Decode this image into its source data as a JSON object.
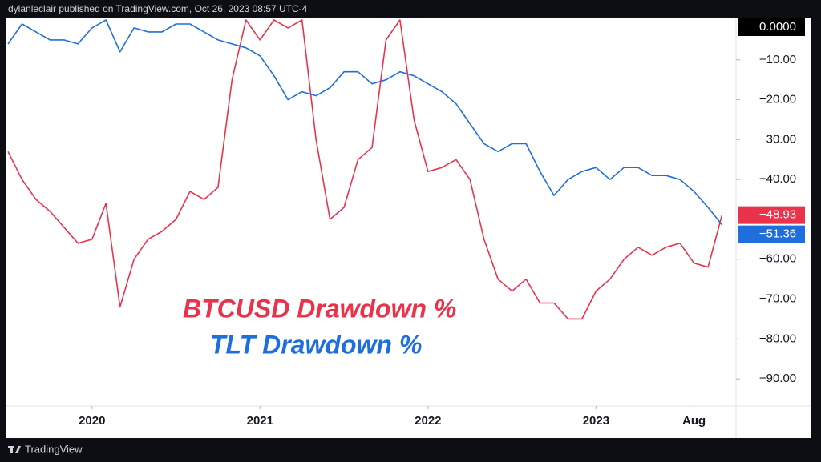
{
  "header": "dylanleclair published on TradingView.com, Oct 26, 2023 08:57 UTC-4",
  "footer": "TradingView",
  "chart_data": {
    "type": "line",
    "annotations": [
      {
        "text": "BTCUSD Drawdown %",
        "color": "#e8334a"
      },
      {
        "text": "TLT Drawdown %",
        "color": "#1e6fdb"
      }
    ],
    "x": [
      "2019-07",
      "2019-08",
      "2019-09",
      "2019-10",
      "2019-11",
      "2019-12",
      "2020-01",
      "2020-02",
      "2020-03",
      "2020-04",
      "2020-05",
      "2020-06",
      "2020-07",
      "2020-08",
      "2020-09",
      "2020-10",
      "2020-11",
      "2020-12",
      "2021-01",
      "2021-02",
      "2021-03",
      "2021-04",
      "2021-05",
      "2021-06",
      "2021-07",
      "2021-08",
      "2021-09",
      "2021-10",
      "2021-11",
      "2021-12",
      "2022-01",
      "2022-02",
      "2022-03",
      "2022-04",
      "2022-05",
      "2022-06",
      "2022-07",
      "2022-08",
      "2022-09",
      "2022-10",
      "2022-11",
      "2022-12",
      "2023-01",
      "2023-02",
      "2023-03",
      "2023-04",
      "2023-05",
      "2023-06",
      "2023-07",
      "2023-08",
      "2023-09",
      "2023-10"
    ],
    "series": [
      {
        "name": "BTCUSD",
        "color": "#e8334a",
        "values": [
          -33,
          -40,
          -45,
          -48,
          -52,
          -56,
          -55,
          -46,
          -72,
          -60,
          -55,
          -53,
          -50,
          -43,
          -45,
          -42,
          -15,
          0,
          -5,
          0,
          -2,
          0,
          -30,
          -50,
          -47,
          -35,
          -32,
          -5,
          0,
          -25,
          -38,
          -37,
          -35,
          -40,
          -55,
          -65,
          -68,
          -65,
          -71,
          -71,
          -75,
          -75,
          -68,
          -65,
          -60,
          -57,
          -59,
          -57,
          -56,
          -61,
          -62,
          -48.93
        ]
      },
      {
        "name": "TLT",
        "color": "#1e6fdb",
        "values": [
          -6,
          -1,
          -3,
          -5,
          -5,
          -6,
          -2,
          0,
          -8,
          -2,
          -3,
          -3,
          -1,
          -1,
          -3,
          -5,
          -6,
          -7,
          -9,
          -14,
          -20,
          -18,
          -19,
          -17,
          -13,
          -13,
          -16,
          -15,
          -13,
          -14,
          -16,
          -18,
          -21,
          -26,
          -31,
          -33,
          -31,
          -31,
          -38,
          -44,
          -40,
          -38,
          -37,
          -40,
          -37,
          -37,
          -39,
          -39,
          -40,
          -43,
          -47,
          -51.36
        ]
      }
    ],
    "xlim": [
      "2019-07",
      "2023-11"
    ],
    "xticks": [
      {
        "value": "2020-01",
        "label": "2020"
      },
      {
        "value": "2021-01",
        "label": "2021"
      },
      {
        "value": "2022-01",
        "label": "2022"
      },
      {
        "value": "2023-01",
        "label": "2023"
      },
      {
        "value": "2023-08",
        "label": "Aug"
      }
    ],
    "ylim": [
      -96.8,
      0.6
    ],
    "yticks": [
      {
        "value": -10,
        "label": "−10.00"
      },
      {
        "value": -20,
        "label": "−20.00"
      },
      {
        "value": -30,
        "label": "−30.00"
      },
      {
        "value": -40,
        "label": "−40.00"
      },
      {
        "value": -60,
        "label": "−60.00"
      },
      {
        "value": -70,
        "label": "−70.00"
      },
      {
        "value": -80,
        "label": "−80.00"
      },
      {
        "value": -90,
        "label": "−90.00"
      }
    ],
    "axis_markers": [
      {
        "value": 0,
        "label": "0.0000",
        "color": "#000000"
      },
      {
        "value": -48.93,
        "label": "−48.93",
        "color": "#e8334a"
      },
      {
        "value": -51.36,
        "label": "−51.36",
        "color": "#1e6fdb"
      }
    ]
  }
}
